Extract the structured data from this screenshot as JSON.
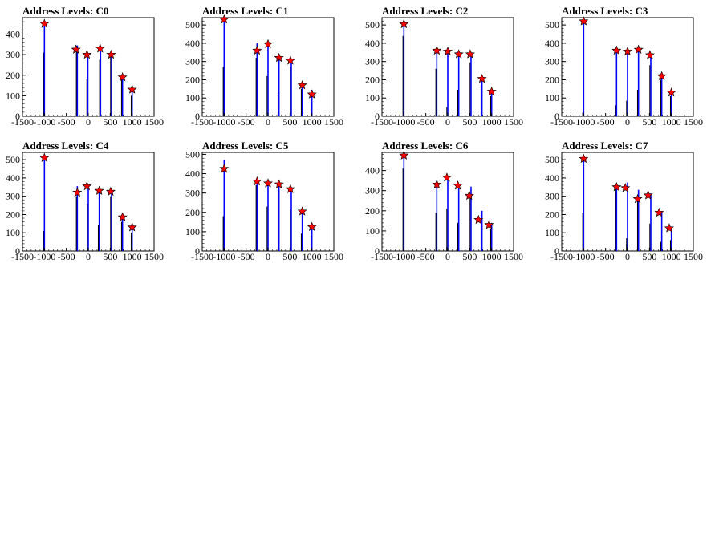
{
  "charts": [
    {
      "title": "Address Levels: C0",
      "type": "bar",
      "xlim": [
        -1500,
        1500
      ],
      "ylim": [
        0,
        480
      ],
      "xticks": [
        -1500,
        -1000,
        -500,
        0,
        500,
        1000,
        1500
      ],
      "yticks": [
        100,
        200,
        300,
        400
      ],
      "bars": [
        {
          "x": -1000,
          "value": 445,
          "inner": [
            310
          ]
        },
        {
          "x": -250,
          "value": 345,
          "inner": [
            325
          ]
        },
        {
          "x": -10,
          "value": 305,
          "inner": [
            180
          ]
        },
        {
          "x": 280,
          "value": 330,
          "inner": [
            275
          ]
        },
        {
          "x": 530,
          "value": 305,
          "inner": [
            290
          ]
        },
        {
          "x": 780,
          "value": 190,
          "inner": [
            180
          ]
        },
        {
          "x": 1000,
          "value": 130,
          "inner": [
            100
          ]
        }
      ],
      "peaks": [
        {
          "x": -1000,
          "y": 450
        },
        {
          "x": -280,
          "y": 325
        },
        {
          "x": -30,
          "y": 300
        },
        {
          "x": 270,
          "y": 330
        },
        {
          "x": 520,
          "y": 300
        },
        {
          "x": 780,
          "y": 190
        },
        {
          "x": 1000,
          "y": 130
        }
      ]
    },
    {
      "title": "Address Levels: C1",
      "type": "bar",
      "xlim": [
        -1500,
        1500
      ],
      "ylim": [
        0,
        540
      ],
      "xticks": [
        -1500,
        -1000,
        -500,
        0,
        500,
        1000,
        1500
      ],
      "yticks": [
        100,
        200,
        300,
        400,
        500
      ],
      "bars": [
        {
          "x": -1000,
          "value": 530,
          "inner": [
            270
          ]
        },
        {
          "x": -250,
          "value": 400,
          "inner": [
            320
          ]
        },
        {
          "x": 0,
          "value": 405,
          "inner": [
            220
          ]
        },
        {
          "x": 250,
          "value": 335,
          "inner": [
            140,
            20
          ]
        },
        {
          "x": 530,
          "value": 305,
          "inner": [
            270,
            20
          ]
        },
        {
          "x": 780,
          "value": 175,
          "inner": [
            150,
            10
          ]
        },
        {
          "x": 1000,
          "value": 145,
          "inner": [
            90
          ]
        }
      ],
      "peaks": [
        {
          "x": -1000,
          "y": 530
        },
        {
          "x": -250,
          "y": 360
        },
        {
          "x": 0,
          "y": 395
        },
        {
          "x": 250,
          "y": 320
        },
        {
          "x": 510,
          "y": 305
        },
        {
          "x": 780,
          "y": 170
        },
        {
          "x": 1000,
          "y": 120
        }
      ]
    },
    {
      "title": "Address Levels: C2",
      "type": "bar",
      "xlim": [
        -1500,
        1500
      ],
      "ylim": [
        0,
        540
      ],
      "xticks": [
        -1500,
        -1000,
        -500,
        0,
        500,
        1000,
        1500
      ],
      "yticks": [
        100,
        200,
        300,
        400,
        500
      ],
      "bars": [
        {
          "x": -1000,
          "value": 510,
          "inner": [
            440
          ]
        },
        {
          "x": -250,
          "value": 365,
          "inner": [
            260
          ]
        },
        {
          "x": 0,
          "value": 360,
          "inner": [
            50
          ]
        },
        {
          "x": 250,
          "value": 345,
          "inner": [
            145,
            20
          ]
        },
        {
          "x": 530,
          "value": 340,
          "inner": [
            295
          ]
        },
        {
          "x": 780,
          "value": 210,
          "inner": [
            170
          ]
        },
        {
          "x": 1000,
          "value": 140,
          "inner": [
            110
          ]
        }
      ],
      "peaks": [
        {
          "x": -1000,
          "y": 505
        },
        {
          "x": -250,
          "y": 360
        },
        {
          "x": 0,
          "y": 355
        },
        {
          "x": 250,
          "y": 340
        },
        {
          "x": 510,
          "y": 340
        },
        {
          "x": 780,
          "y": 205
        },
        {
          "x": 1000,
          "y": 135
        }
      ]
    },
    {
      "title": "Address Levels: C3",
      "type": "bar",
      "xlim": [
        -1500,
        1500
      ],
      "ylim": [
        0,
        540
      ],
      "xticks": [
        -1500,
        -1000,
        -500,
        0,
        500,
        1000,
        1500
      ],
      "yticks": [
        100,
        200,
        300,
        400,
        500
      ],
      "bars": [
        {
          "x": -1000,
          "value": 525,
          "inner": [
            20
          ]
        },
        {
          "x": -250,
          "value": 365,
          "inner": [
            60
          ]
        },
        {
          "x": 0,
          "value": 360,
          "inner": [
            85
          ]
        },
        {
          "x": 250,
          "value": 370,
          "inner": [
            145
          ]
        },
        {
          "x": 530,
          "value": 340,
          "inner": [
            280
          ]
        },
        {
          "x": 780,
          "value": 225,
          "inner": [
            200
          ]
        },
        {
          "x": 1000,
          "value": 140,
          "inner": [
            110
          ]
        }
      ],
      "peaks": [
        {
          "x": -1000,
          "y": 520
        },
        {
          "x": -250,
          "y": 360
        },
        {
          "x": 0,
          "y": 355
        },
        {
          "x": 250,
          "y": 365
        },
        {
          "x": 510,
          "y": 335
        },
        {
          "x": 780,
          "y": 220
        },
        {
          "x": 1000,
          "y": 130
        }
      ]
    },
    {
      "title": "Address Levels: C4",
      "type": "bar",
      "xlim": [
        -1500,
        1500
      ],
      "ylim": [
        0,
        540
      ],
      "xticks": [
        -1500,
        -1000,
        -500,
        0,
        500,
        1000,
        1500
      ],
      "yticks": [
        100,
        200,
        300,
        400,
        500
      ],
      "bars": [
        {
          "x": -1000,
          "value": 520,
          "inner": [
            110
          ]
        },
        {
          "x": -250,
          "value": 355,
          "inner": [
            300
          ]
        },
        {
          "x": 0,
          "value": 365,
          "inner": [
            260
          ]
        },
        {
          "x": 250,
          "value": 340,
          "inner": [
            145,
            30
          ]
        },
        {
          "x": 530,
          "value": 335,
          "inner": [
            300
          ]
        },
        {
          "x": 780,
          "value": 195,
          "inner": [
            160
          ]
        },
        {
          "x": 1000,
          "value": 140,
          "inner": [
            100
          ]
        }
      ],
      "peaks": [
        {
          "x": -1000,
          "y": 510
        },
        {
          "x": -250,
          "y": 320
        },
        {
          "x": -30,
          "y": 355
        },
        {
          "x": 250,
          "y": 330
        },
        {
          "x": 510,
          "y": 325
        },
        {
          "x": 780,
          "y": 185
        },
        {
          "x": 1000,
          "y": 130
        }
      ]
    },
    {
      "title": "Address Levels: C5",
      "type": "bar",
      "xlim": [
        -1500,
        1500
      ],
      "ylim": [
        0,
        510
      ],
      "xticks": [
        -1500,
        -1000,
        -500,
        0,
        500,
        1000,
        1500
      ],
      "yticks": [
        100,
        200,
        300,
        400,
        500
      ],
      "bars": [
        {
          "x": -1000,
          "value": 470,
          "inner": [
            180
          ]
        },
        {
          "x": -250,
          "value": 365,
          "inner": [
            340
          ]
        },
        {
          "x": 0,
          "value": 355,
          "inner": [
            230
          ]
        },
        {
          "x": 250,
          "value": 350,
          "inner": [
            320
          ]
        },
        {
          "x": 530,
          "value": 330,
          "inner": [
            220,
            20
          ]
        },
        {
          "x": 780,
          "value": 210,
          "inner": [
            90
          ]
        },
        {
          "x": 1000,
          "value": 140,
          "inner": [
            80
          ]
        }
      ],
      "peaks": [
        {
          "x": -1000,
          "y": 425
        },
        {
          "x": -250,
          "y": 360
        },
        {
          "x": 0,
          "y": 350
        },
        {
          "x": 250,
          "y": 345
        },
        {
          "x": 510,
          "y": 320
        },
        {
          "x": 780,
          "y": 205
        },
        {
          "x": 1000,
          "y": 125
        }
      ]
    },
    {
      "title": "Address Levels: C6",
      "type": "bar",
      "xlim": [
        -1500,
        1500
      ],
      "ylim": [
        0,
        490
      ],
      "xticks": [
        -1500,
        -1000,
        -500,
        0,
        500,
        1000,
        1500
      ],
      "yticks": [
        100,
        200,
        300,
        400
      ],
      "bars": [
        {
          "x": -1000,
          "value": 480,
          "inner": [
            410
          ]
        },
        {
          "x": -250,
          "value": 350,
          "inner": [
            190
          ]
        },
        {
          "x": 0,
          "value": 370,
          "inner": [
            210,
            20
          ]
        },
        {
          "x": 250,
          "value": 330,
          "inner": [
            140,
            20
          ]
        },
        {
          "x": 530,
          "value": 320,
          "inner": [
            270
          ]
        },
        {
          "x": 780,
          "value": 200,
          "inner": [
            180
          ]
        },
        {
          "x": 1000,
          "value": 140,
          "inner": [
            110
          ]
        }
      ],
      "peaks": [
        {
          "x": -1000,
          "y": 475
        },
        {
          "x": -250,
          "y": 330
        },
        {
          "x": -20,
          "y": 365
        },
        {
          "x": 230,
          "y": 325
        },
        {
          "x": 490,
          "y": 275
        },
        {
          "x": 700,
          "y": 155
        },
        {
          "x": 940,
          "y": 130
        }
      ]
    },
    {
      "title": "Address Levels: C7",
      "type": "bar",
      "xlim": [
        -1500,
        1500
      ],
      "ylim": [
        0,
        540
      ],
      "xticks": [
        -1500,
        -1000,
        -500,
        0,
        500,
        1000,
        1500
      ],
      "yticks": [
        100,
        200,
        300,
        400,
        500
      ],
      "bars": [
        {
          "x": -1000,
          "value": 510,
          "inner": [
            210
          ]
        },
        {
          "x": -250,
          "value": 360,
          "inner": [
            340
          ]
        },
        {
          "x": 0,
          "value": 375,
          "inner": [
            70,
            40
          ]
        },
        {
          "x": 250,
          "value": 335,
          "inner": [
            300,
            30
          ]
        },
        {
          "x": 530,
          "value": 315,
          "inner": [
            150,
            20
          ]
        },
        {
          "x": 780,
          "value": 210,
          "inner": [
            50,
            20
          ]
        },
        {
          "x": 1000,
          "value": 130,
          "inner": [
            60,
            20
          ]
        }
      ],
      "peaks": [
        {
          "x": -1000,
          "y": 505
        },
        {
          "x": -250,
          "y": 350
        },
        {
          "x": -50,
          "y": 345
        },
        {
          "x": 230,
          "y": 285
        },
        {
          "x": 470,
          "y": 305
        },
        {
          "x": 720,
          "y": 210
        },
        {
          "x": 950,
          "y": 125
        }
      ]
    }
  ],
  "colors": {
    "bar": "#0000ff",
    "bar_inner": "#000000",
    "peak_marker": "#ff0000",
    "peak_outline": "#000000",
    "axis": "#000000"
  }
}
